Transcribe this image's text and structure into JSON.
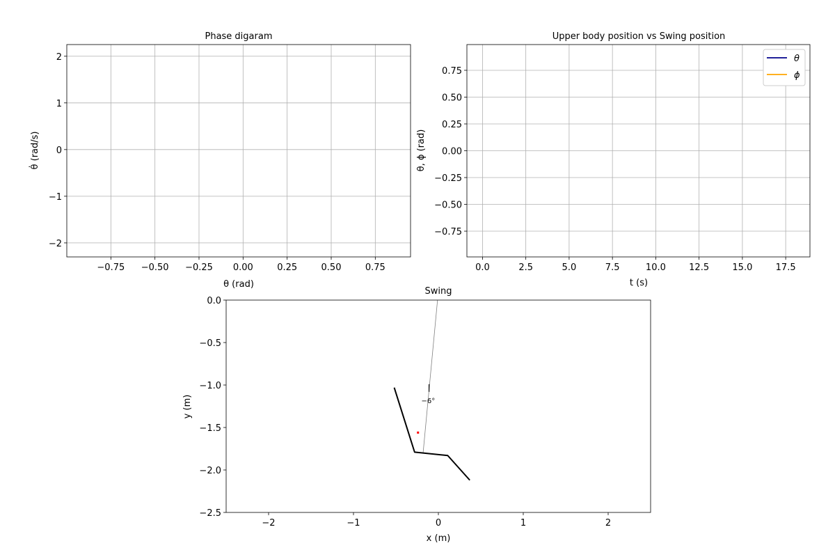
{
  "chart_data": [
    {
      "type": "line",
      "title": "Phase digaram",
      "xlabel": "θ (rad)",
      "ylabel": "θ̇ (rad/s)",
      "xlim": [
        -1.0,
        0.95
      ],
      "ylim": [
        -2.3,
        2.25
      ],
      "xticks": [
        -0.75,
        -0.5,
        -0.25,
        0.0,
        0.25,
        0.5,
        0.75
      ],
      "xtick_labels": [
        "−0.75",
        "−0.50",
        "−0.25",
        "0.00",
        "0.25",
        "0.50",
        "0.75"
      ],
      "yticks": [
        -2,
        -1,
        0,
        1,
        2
      ],
      "ytick_labels": [
        "−2",
        "−1",
        "0",
        "1",
        "2"
      ],
      "grid": true,
      "series": []
    },
    {
      "type": "line",
      "title": "Upper body position vs Swing position",
      "xlabel": "t (s)",
      "ylabel": "θ, ϕ (rad)",
      "xlim": [
        -0.9,
        18.9
      ],
      "ylim": [
        -0.99,
        0.99
      ],
      "xticks": [
        0,
        2.5,
        5,
        7.5,
        10,
        12.5,
        15,
        17.5
      ],
      "xtick_labels": [
        "0.0",
        "2.5",
        "5.0",
        "7.5",
        "10.0",
        "12.5",
        "15.0",
        "17.5"
      ],
      "yticks": [
        -0.75,
        -0.5,
        -0.25,
        0,
        0.25,
        0.5,
        0.75
      ],
      "ytick_labels": [
        "−0.75",
        "−0.50",
        "−0.25",
        "0.00",
        "0.25",
        "0.50",
        "0.75"
      ],
      "grid": true,
      "legend": "top-right",
      "series": [
        {
          "name": "θ",
          "color": "#00008b",
          "x": [],
          "y": []
        },
        {
          "name": "ϕ",
          "color": "#ffa500",
          "x": [],
          "y": []
        }
      ]
    },
    {
      "type": "line",
      "title": "Swing",
      "xlabel": "x (m)",
      "ylabel": "y (m)",
      "xlim": [
        -2.5,
        2.5
      ],
      "ylim": [
        -2.5,
        0.0
      ],
      "xticks": [
        -2,
        -1,
        0,
        1,
        2
      ],
      "xtick_labels": [
        "−2",
        "−1",
        "0",
        "1",
        "2"
      ],
      "yticks": [
        -2.5,
        -2.0,
        -1.5,
        -1.0,
        -0.5,
        0.0
      ],
      "ytick_labels": [
        "−2.5",
        "−2.0",
        "−1.5",
        "−1.0",
        "−0.5",
        "0.0"
      ],
      "grid": false,
      "rope": {
        "x": [
          -0.01,
          -0.18
        ],
        "y": [
          0.0,
          -1.8
        ],
        "color": "#808080"
      },
      "body": {
        "x": [
          -0.52,
          -0.28,
          0.11,
          0.37
        ],
        "y": [
          -1.03,
          -1.79,
          -1.83,
          -2.12
        ],
        "color": "#000000"
      },
      "center_of_mass": {
        "x": -0.24,
        "y": -1.56,
        "color": "#ff0000"
      },
      "angle_marker": {
        "x": [
          -0.11,
          -0.11
        ],
        "y": [
          -0.99,
          -1.08
        ]
      },
      "angle_annotation": {
        "text": "−6°",
        "x": -0.12,
        "y": -1.18
      }
    }
  ]
}
